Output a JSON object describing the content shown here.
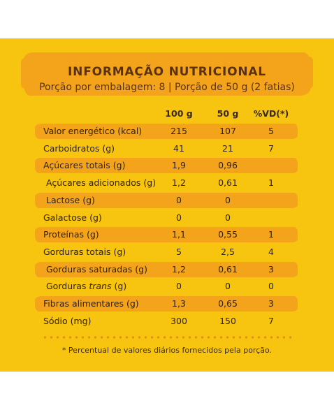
{
  "header": {
    "title": "INFORMAÇÃO NUTRICIONAL",
    "subtitle": "Porção por embalagem: 8 | Porção de 50 g (2 fatias)"
  },
  "columns": {
    "per100": "100 g",
    "per50": "50 g",
    "vd": "%VD(*)"
  },
  "rows": [
    {
      "label": "Valor energético (kcal)",
      "v100": "215",
      "v50": "107",
      "vd": "5",
      "highlight": true,
      "indent": false
    },
    {
      "label": "Carboidratos (g)",
      "v100": "41",
      "v50": "21",
      "vd": "7",
      "highlight": false,
      "indent": false
    },
    {
      "label": "Açúcares totais (g)",
      "v100": "1,9",
      "v50": "0,96",
      "vd": "",
      "highlight": true,
      "indent": false
    },
    {
      "label": "Açúcares adicionados (g)",
      "v100": "1,2",
      "v50": "0,61",
      "vd": "1",
      "highlight": false,
      "indent": true
    },
    {
      "label": "Lactose (g)",
      "v100": "0",
      "v50": "0",
      "vd": "",
      "highlight": true,
      "indent": true
    },
    {
      "label": "Galactose (g)",
      "v100": "0",
      "v50": "0",
      "vd": "",
      "highlight": false,
      "indent": false
    },
    {
      "label": "Proteínas (g)",
      "v100": "1,1",
      "v50": "0,55",
      "vd": "1",
      "highlight": true,
      "indent": false
    },
    {
      "label": "Gorduras totais (g)",
      "v100": "5",
      "v50": "2,5",
      "vd": "4",
      "highlight": false,
      "indent": false
    },
    {
      "label": "Gorduras saturadas (g)",
      "v100": "1,2",
      "v50": "0,61",
      "vd": "3",
      "highlight": true,
      "indent": true
    },
    {
      "label_prefix": "Gorduras ",
      "label_em": "trans",
      "label_suffix": " (g)",
      "v100": "0",
      "v50": "0",
      "vd": "0",
      "highlight": false,
      "indent": true
    },
    {
      "label": "Fibras alimentares (g)",
      "v100": "1,3",
      "v50": "0,65",
      "vd": "3",
      "highlight": true,
      "indent": false
    },
    {
      "label": "Sódio (mg)",
      "v100": "300",
      "v50": "150",
      "vd": "7",
      "highlight": false,
      "indent": false
    }
  ],
  "footnote": "* Percentual de valores diários fornecidos pela porção.",
  "colors": {
    "background": "#f7c40f",
    "highlight": "#f4a41a",
    "text": "#2e2015",
    "title": "#5a3213"
  }
}
